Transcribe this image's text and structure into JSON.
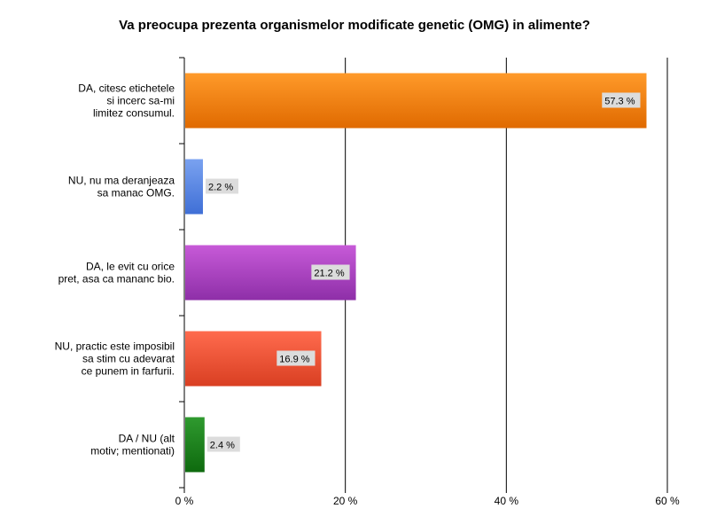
{
  "chart_data": {
    "type": "bar",
    "orientation": "horizontal",
    "title": "Va preocupa prezenta organismelor modificate genetic (OMG) in alimente?",
    "xlabel": "",
    "ylabel": "",
    "xlim": [
      0,
      60
    ],
    "x_ticks": [
      0,
      20,
      40,
      60
    ],
    "x_tick_labels": [
      "0 %",
      "20 %",
      "40 %",
      "60 %"
    ],
    "grid": true,
    "legend": "none",
    "categories": [
      [
        "DA, citesc etichetele",
        "si incerc sa-mi",
        "limitez consumul."
      ],
      [
        "NU, nu ma deranjeaza",
        "sa manac OMG."
      ],
      [
        "DA, le evit cu orice",
        "pret, asa ca mananc bio."
      ],
      [
        "NU, practic este imposibil",
        "sa stim cu adevarat",
        "ce punem in farfurii."
      ],
      [
        "DA / NU (alt",
        "motiv; mentionati)"
      ]
    ],
    "values": [
      57.3,
      2.2,
      21.2,
      16.9,
      2.4
    ],
    "data_labels": [
      "57.3 %",
      "2.2 %",
      "21.2 %",
      "16.9 %",
      "2.4 %"
    ],
    "colors": [
      [
        "#ff9a2a",
        "#e06a00"
      ],
      [
        "#7aa2f0",
        "#3f6fd6"
      ],
      [
        "#c75ad8",
        "#8e2fa8"
      ],
      [
        "#ff6b4e",
        "#d93f22"
      ],
      [
        "#2f9a2f",
        "#0e6a0e"
      ]
    ]
  }
}
